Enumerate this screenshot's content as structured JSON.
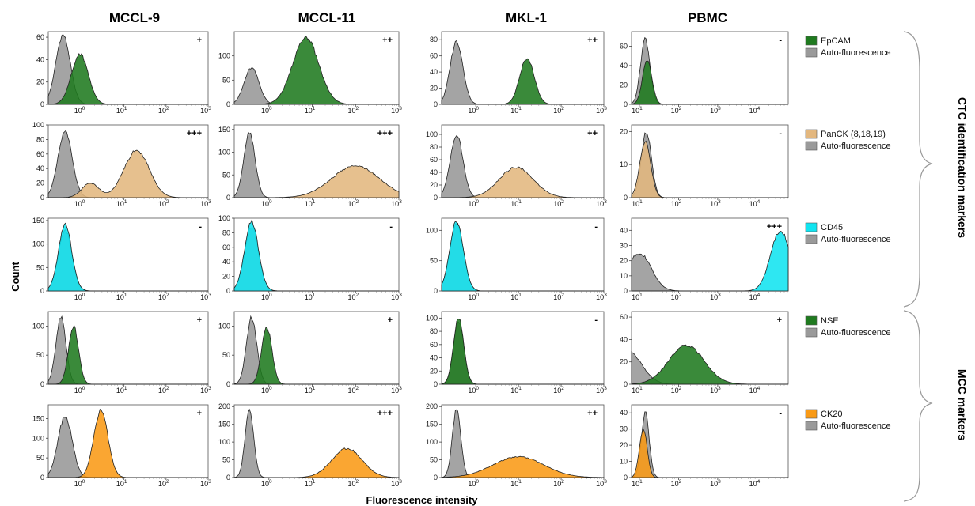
{
  "chart_data": {
    "type": "area",
    "columns": [
      "MCCL-9",
      "MCCL-11",
      "MKL-1",
      "PBMC"
    ],
    "ylabel": "Count",
    "xlabel": "Fluorescence intensity",
    "group_labels": [
      "CTC identification markers",
      "MCC markers"
    ],
    "colors": {
      "auto": "#9a9a9a",
      "EpCAM": "#1f7a1f",
      "PanCK (8,18,19)": "#e3b77e",
      "CD45": "#11e4f0",
      "NSE": "#1f7a1f",
      "CK20": "#f99a16"
    },
    "rows": [
      {
        "marker": "EpCAM",
        "legend": [
          "EpCAM",
          "Auto-fluorescence"
        ],
        "panels": [
          {
            "xlim": [
              -0.8,
              3
            ],
            "xticks": [
              0,
              1,
              2,
              3
            ],
            "ylim": [
              0,
              65
            ],
            "yticks": [
              0,
              20,
              40,
              60
            ],
            "intensity": "+",
            "auto": {
              "mu": -0.45,
              "sd": 0.17,
              "peak": 62
            },
            "marker_peak": {
              "mu": -0.05,
              "sd": 0.2,
              "peak": 45
            }
          },
          {
            "xlim": [
              -0.8,
              3
            ],
            "xticks": [
              0,
              1,
              2,
              3
            ],
            "ylim": [
              0,
              150
            ],
            "yticks": [
              0,
              50,
              100
            ],
            "intensity": "++",
            "auto": {
              "mu": -0.4,
              "sd": 0.17,
              "peak": 75
            },
            "marker_peak": {
              "mu": 0.85,
              "sd": 0.3,
              "peak": 138
            }
          },
          {
            "xlim": [
              -0.8,
              3
            ],
            "xticks": [
              0,
              1,
              2,
              3
            ],
            "ylim": [
              0,
              90
            ],
            "yticks": [
              0,
              20,
              40,
              60,
              80
            ],
            "intensity": "++",
            "auto": {
              "mu": -0.45,
              "sd": 0.15,
              "peak": 78
            },
            "marker_peak": {
              "mu": 1.2,
              "sd": 0.17,
              "peak": 57
            }
          },
          {
            "xlim": [
              0.8,
              4.8
            ],
            "xticks": [
              1,
              2,
              3,
              4
            ],
            "ylim": [
              0,
              75
            ],
            "yticks": [
              0,
              20,
              40,
              60
            ],
            "intensity": "-",
            "auto": {
              "mu": 1.15,
              "sd": 0.12,
              "peak": 68
            },
            "marker_peak": {
              "mu": 1.2,
              "sd": 0.12,
              "peak": 46
            }
          }
        ]
      },
      {
        "marker": "PanCK (8,18,19)",
        "legend": [
          "PanCK (8,18,19)",
          "Auto-fluorescence"
        ],
        "panels": [
          {
            "xlim": [
              -0.8,
              3
            ],
            "xticks": [
              0,
              1,
              2,
              3
            ],
            "ylim": [
              0,
              100
            ],
            "yticks": [
              0,
              20,
              40,
              60,
              80,
              100
            ],
            "intensity": "+++",
            "auto": {
              "mu": -0.4,
              "sd": 0.17,
              "peak": 90
            },
            "marker_peak": {
              "mu": 1.3,
              "sd": 0.3,
              "peak": 65
            },
            "extra_peak": {
              "mu": 0.2,
              "sd": 0.2,
              "peak": 20
            }
          },
          {
            "xlim": [
              -0.8,
              3
            ],
            "xticks": [
              0,
              1,
              2,
              3
            ],
            "ylim": [
              0,
              160
            ],
            "yticks": [
              0,
              50,
              100,
              150
            ],
            "intensity": "+++",
            "auto": {
              "mu": -0.45,
              "sd": 0.13,
              "peak": 145
            },
            "marker_peak": {
              "mu": 2.0,
              "sd": 0.55,
              "peak": 70
            }
          },
          {
            "xlim": [
              -0.8,
              3
            ],
            "xticks": [
              0,
              1,
              2,
              3
            ],
            "ylim": [
              0,
              115
            ],
            "yticks": [
              0,
              20,
              40,
              60,
              80,
              100
            ],
            "intensity": "++",
            "auto": {
              "mu": -0.45,
              "sd": 0.15,
              "peak": 100
            },
            "marker_peak": {
              "mu": 0.95,
              "sd": 0.4,
              "peak": 48
            }
          },
          {
            "xlim": [
              0.8,
              4.8
            ],
            "xticks": [
              1,
              2,
              3,
              4
            ],
            "ylim": [
              0,
              22
            ],
            "yticks": [
              0,
              10,
              20
            ],
            "intensity": "-",
            "auto": {
              "mu": 1.18,
              "sd": 0.13,
              "peak": 20
            },
            "marker_peak": {
              "mu": 1.15,
              "sd": 0.14,
              "peak": 17
            }
          }
        ]
      },
      {
        "marker": "CD45",
        "legend": [
          "CD45",
          "Auto-fluorescence"
        ],
        "panels": [
          {
            "xlim": [
              -0.8,
              3
            ],
            "xticks": [
              0,
              1,
              2,
              3
            ],
            "ylim": [
              0,
              155
            ],
            "yticks": [
              0,
              50,
              100,
              150
            ],
            "intensity": "-",
            "auto": {
              "mu": -0.4,
              "sd": 0.16,
              "peak": 130
            },
            "marker_peak": {
              "mu": -0.4,
              "sd": 0.16,
              "peak": 140
            }
          },
          {
            "xlim": [
              -0.8,
              3
            ],
            "xticks": [
              0,
              1,
              2,
              3
            ],
            "ylim": [
              0,
              100
            ],
            "yticks": [
              0,
              20,
              40,
              60,
              80,
              100
            ],
            "intensity": "-",
            "auto": {
              "mu": -0.4,
              "sd": 0.16,
              "peak": 90
            },
            "marker_peak": {
              "mu": -0.4,
              "sd": 0.16,
              "peak": 95
            }
          },
          {
            "xlim": [
              -0.8,
              3
            ],
            "xticks": [
              0,
              1,
              2,
              3
            ],
            "ylim": [
              0,
              120
            ],
            "yticks": [
              0,
              50,
              100
            ],
            "intensity": "-",
            "auto": {
              "mu": -0.45,
              "sd": 0.16,
              "peak": 110
            },
            "marker_peak": {
              "mu": -0.45,
              "sd": 0.16,
              "peak": 115
            }
          },
          {
            "xlim": [
              0.8,
              4.8
            ],
            "xticks": [
              1,
              2,
              3,
              4
            ],
            "ylim": [
              0,
              48
            ],
            "yticks": [
              0,
              10,
              20,
              30,
              40
            ],
            "intensity": "+++",
            "auto": {
              "mu": 1.0,
              "sd": 0.3,
              "peak": 25
            },
            "marker_peak": {
              "mu": 4.6,
              "sd": 0.25,
              "peak": 40
            }
          }
        ]
      },
      {
        "marker": "NSE",
        "legend": [
          "NSE",
          "Auto-fluorescence"
        ],
        "panels": [
          {
            "xlim": [
              -0.8,
              3
            ],
            "xticks": [
              0,
              1,
              2,
              3
            ],
            "ylim": [
              0,
              125
            ],
            "yticks": [
              0,
              50,
              100
            ],
            "intensity": "+",
            "auto": {
              "mu": -0.5,
              "sd": 0.12,
              "peak": 115
            },
            "marker_peak": {
              "mu": -0.2,
              "sd": 0.12,
              "peak": 100
            }
          },
          {
            "xlim": [
              -0.8,
              3
            ],
            "xticks": [
              0,
              1,
              2,
              3
            ],
            "ylim": [
              0,
              125
            ],
            "yticks": [
              0,
              50,
              100
            ],
            "intensity": "+",
            "auto": {
              "mu": -0.4,
              "sd": 0.12,
              "peak": 115
            },
            "marker_peak": {
              "mu": -0.05,
              "sd": 0.12,
              "peak": 98
            }
          },
          {
            "xlim": [
              -0.8,
              3
            ],
            "xticks": [
              0,
              1,
              2,
              3
            ],
            "ylim": [
              0,
              110
            ],
            "yticks": [
              0,
              20,
              40,
              60,
              80,
              100
            ],
            "intensity": "-",
            "auto": {
              "mu": -0.4,
              "sd": 0.12,
              "peak": 95
            },
            "marker_peak": {
              "mu": -0.4,
              "sd": 0.12,
              "peak": 100
            }
          },
          {
            "xlim": [
              0.8,
              4.8
            ],
            "xticks": [
              1,
              2,
              3,
              4
            ],
            "ylim": [
              0,
              65
            ],
            "yticks": [
              0,
              20,
              40,
              60
            ],
            "intensity": "+",
            "auto": {
              "mu": 0.7,
              "sd": 0.35,
              "peak": 30
            },
            "marker_peak": {
              "mu": 2.2,
              "sd": 0.45,
              "peak": 35
            }
          }
        ]
      },
      {
        "marker": "CK20",
        "legend": [
          "CK20",
          "Auto-fluorescence"
        ],
        "panels": [
          {
            "xlim": [
              -0.8,
              3
            ],
            "xticks": [
              0,
              1,
              2,
              3
            ],
            "ylim": [
              0,
              185
            ],
            "yticks": [
              0,
              50,
              100,
              150
            ],
            "intensity": "+",
            "auto": {
              "mu": -0.4,
              "sd": 0.17,
              "peak": 155
            },
            "marker_peak": {
              "mu": 0.45,
              "sd": 0.17,
              "peak": 170
            }
          },
          {
            "xlim": [
              -0.8,
              3
            ],
            "xticks": [
              0,
              1,
              2,
              3
            ],
            "ylim": [
              0,
              205
            ],
            "yticks": [
              0,
              50,
              100,
              150,
              200
            ],
            "intensity": "+++",
            "auto": {
              "mu": -0.45,
              "sd": 0.1,
              "peak": 190
            },
            "marker_peak": {
              "mu": 1.8,
              "sd": 0.35,
              "peak": 82
            }
          },
          {
            "xlim": [
              -0.8,
              3
            ],
            "xticks": [
              0,
              1,
              2,
              3
            ],
            "ylim": [
              0,
              205
            ],
            "yticks": [
              0,
              50,
              100,
              150,
              200
            ],
            "intensity": "++",
            "auto": {
              "mu": -0.45,
              "sd": 0.1,
              "peak": 190
            },
            "marker_peak": {
              "mu": 1.0,
              "sd": 0.6,
              "peak": 58
            }
          },
          {
            "xlim": [
              0.8,
              4.8
            ],
            "xticks": [
              1,
              2,
              3,
              4
            ],
            "ylim": [
              0,
              45
            ],
            "yticks": [
              0,
              10,
              20,
              30,
              40
            ],
            "intensity": "-",
            "auto": {
              "mu": 1.15,
              "sd": 0.1,
              "peak": 40
            },
            "marker_peak": {
              "mu": 1.1,
              "sd": 0.1,
              "peak": 30
            }
          }
        ]
      }
    ]
  }
}
